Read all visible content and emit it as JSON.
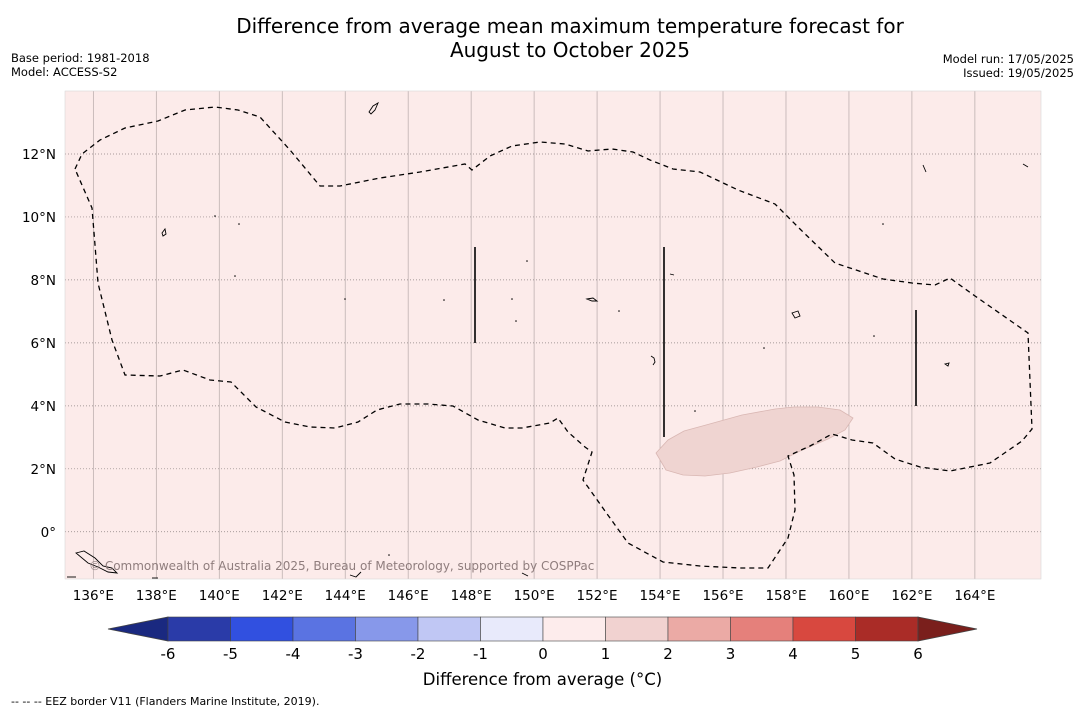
{
  "title_line1": "Difference from average mean maximum temperature forecast for",
  "title_line2": "August to October 2025",
  "base_period": "Base period: 1981-2018",
  "model": "Model: ACCESS-S2",
  "model_run": "Model run: 17/05/2025",
  "issued": "Issued: 19/05/2025",
  "map": {
    "lon_range": [
      135.1,
      166.1
    ],
    "lat_range": [
      -1.5,
      14.0
    ],
    "lon_ticks": [
      136,
      138,
      140,
      142,
      144,
      146,
      148,
      150,
      152,
      154,
      156,
      158,
      160,
      162,
      164
    ],
    "lon_labels": [
      "136°E",
      "138°E",
      "140°E",
      "142°E",
      "144°E",
      "146°E",
      "148°E",
      "150°E",
      "152°E",
      "154°E",
      "156°E",
      "158°E",
      "160°E",
      "162°E",
      "164°E"
    ],
    "lat_ticks": [
      12,
      10,
      8,
      6,
      4,
      2,
      0
    ],
    "lat_labels": [
      "12°N",
      "10°N",
      "8°N",
      "6°N",
      "4°N",
      "2°N",
      "0°"
    ],
    "background_category": "0 to 1",
    "highlight_category": "1 to 2",
    "credit": "© Commonwealth of Australia 2025, Bureau of Meteorology, supported by COSPPac"
  },
  "colorbar": {
    "ticks": [
      "-6",
      "-5",
      "-4",
      "-3",
      "-2",
      "-1",
      "0",
      "1",
      "2",
      "3",
      "4",
      "5",
      "6"
    ],
    "colors": [
      "#2a3ba8",
      "#3150e0",
      "#5a73e2",
      "#8798ea",
      "#c0c7f4",
      "#e8eafb",
      "#fdecec",
      "#f1d2d0",
      "#ebaaa5",
      "#e5807b",
      "#d8483f",
      "#aa2c27"
    ],
    "under_color": "#1a2980",
    "over_color": "#7a1f1c",
    "label": "Difference from average ($^\\circ$C)",
    "label_display": "Difference from average (°C)"
  },
  "footnote": "--  --  -- EEZ border V11 (Flanders Marine Institute, 2019)."
}
